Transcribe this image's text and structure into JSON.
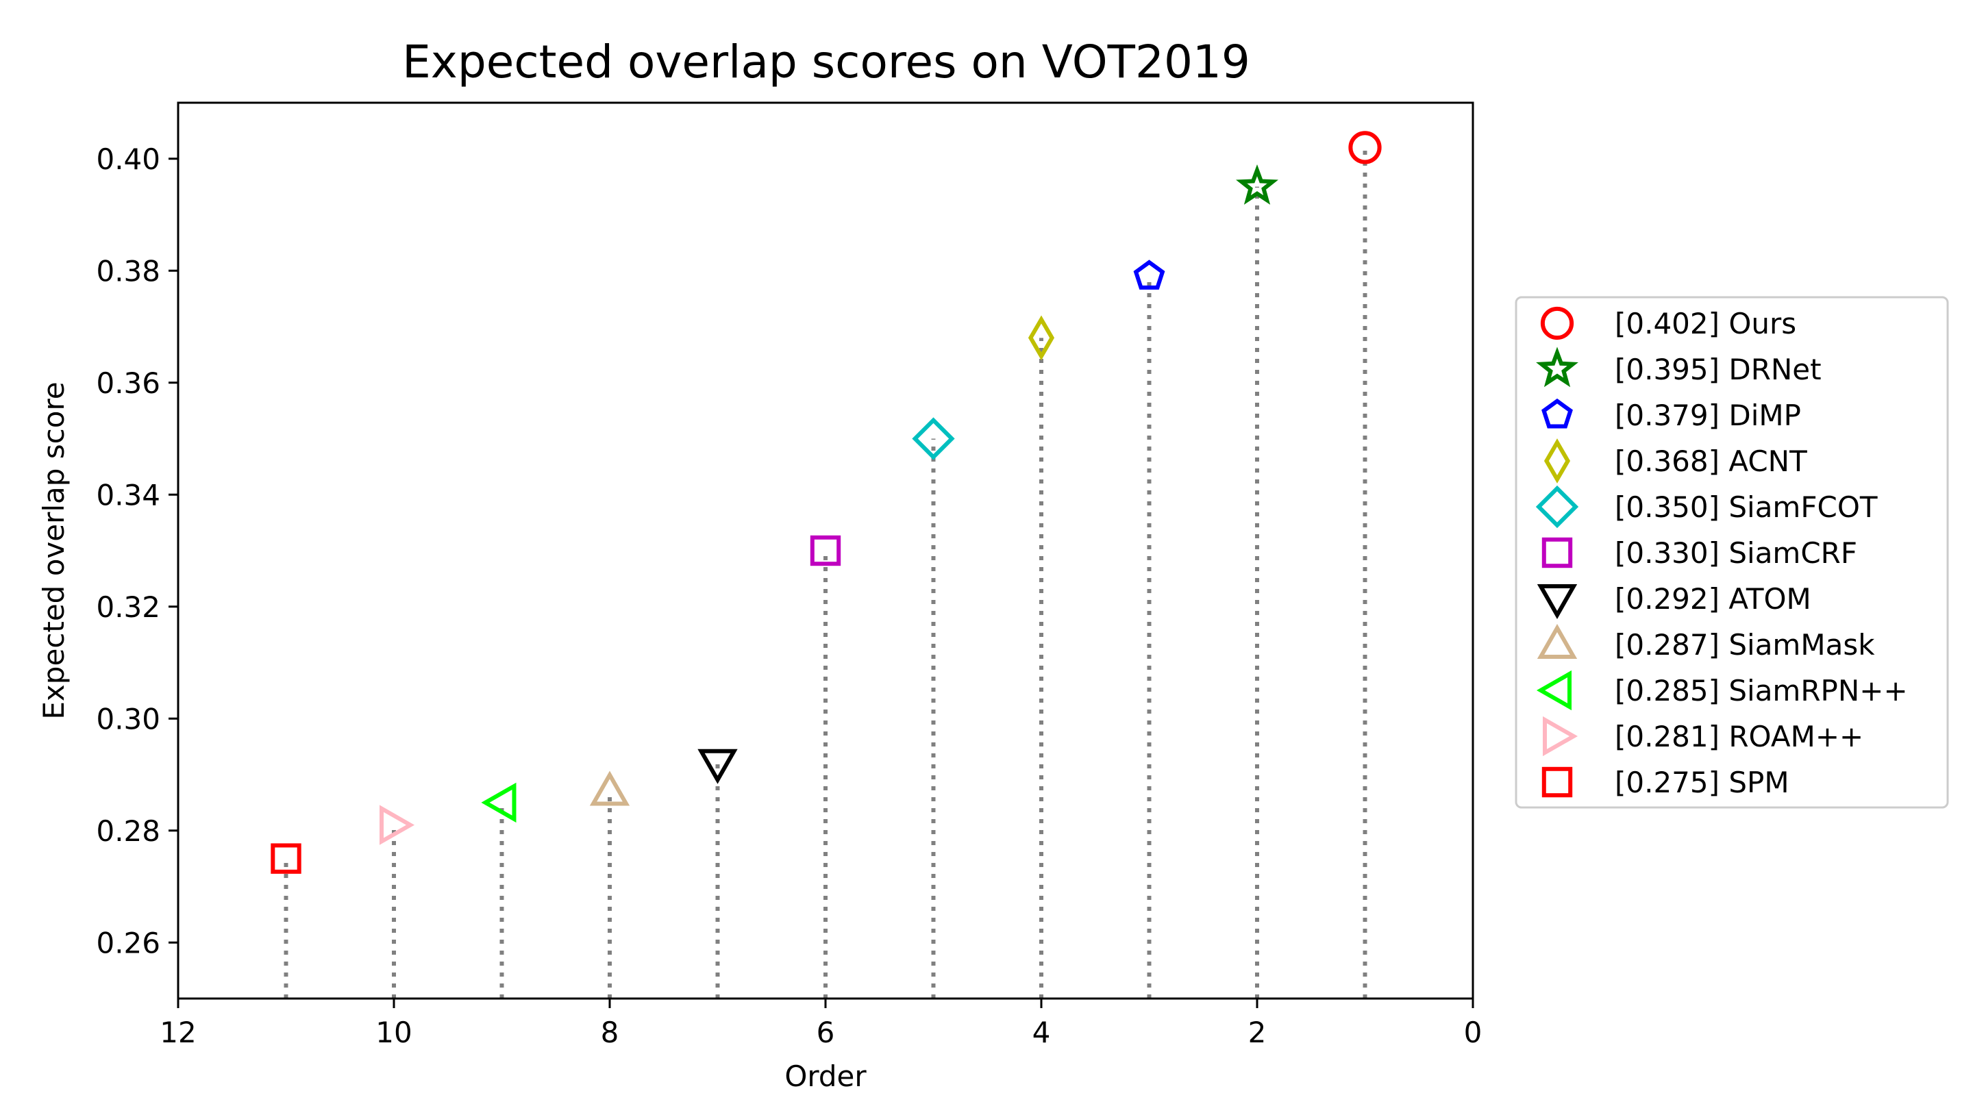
{
  "chart_data": {
    "type": "scatter",
    "title": "Expected overlap scores on VOT2019",
    "xlabel": "Order",
    "ylabel": "Expected overlap score",
    "xlim": [
      12,
      0
    ],
    "ylim": [
      0.25,
      0.41
    ],
    "x_ticks": [
      12,
      10,
      8,
      6,
      4,
      2,
      0
    ],
    "x_tick_labels": [
      "12",
      "10",
      "8",
      "6",
      "4",
      "2",
      "0"
    ],
    "y_ticks": [
      0.26,
      0.28,
      0.3,
      0.32,
      0.34,
      0.36,
      0.38,
      0.4
    ],
    "y_tick_labels": [
      "0.26",
      "0.28",
      "0.30",
      "0.32",
      "0.34",
      "0.36",
      "0.38",
      "0.40"
    ],
    "grid": false,
    "stem_style": "dotted gray",
    "legend_position": "outside right",
    "series": [
      {
        "name": "Ours",
        "label": "[0.402] Ours",
        "x": 1,
        "y": 0.402,
        "marker": "circle",
        "color": "#ff0000"
      },
      {
        "name": "DRNet",
        "label": "[0.395] DRNet",
        "x": 2,
        "y": 0.395,
        "marker": "star",
        "color": "#008000"
      },
      {
        "name": "DiMP",
        "label": "[0.379] DiMP",
        "x": 3,
        "y": 0.379,
        "marker": "pentagon",
        "color": "#0000ff"
      },
      {
        "name": "ACNT",
        "label": "[0.368] ACNT",
        "x": 4,
        "y": 0.368,
        "marker": "thin-diamond",
        "color": "#bfbf00"
      },
      {
        "name": "SiamFCOT",
        "label": "[0.350] SiamFCOT",
        "x": 5,
        "y": 0.35,
        "marker": "diamond",
        "color": "#00bfbf"
      },
      {
        "name": "SiamCRF",
        "label": "[0.330] SiamCRF",
        "x": 6,
        "y": 0.33,
        "marker": "square",
        "color": "#bf00bf"
      },
      {
        "name": "ATOM",
        "label": "[0.292] ATOM",
        "x": 7,
        "y": 0.292,
        "marker": "triangle-down",
        "color": "#000000"
      },
      {
        "name": "SiamMask",
        "label": "[0.287] SiamMask",
        "x": 8,
        "y": 0.287,
        "marker": "triangle-up",
        "color": "#d2b48c"
      },
      {
        "name": "SiamRPN++",
        "label": "[0.285] SiamRPN++",
        "x": 9,
        "y": 0.285,
        "marker": "triangle-left",
        "color": "#00ff00"
      },
      {
        "name": "ROAM++",
        "label": "[0.281] ROAM++",
        "x": 10,
        "y": 0.281,
        "marker": "triangle-right",
        "color": "#ffb6c1"
      },
      {
        "name": "SPM",
        "label": "[0.275] SPM",
        "x": 11,
        "y": 0.275,
        "marker": "square",
        "color": "#ff0000"
      }
    ]
  }
}
